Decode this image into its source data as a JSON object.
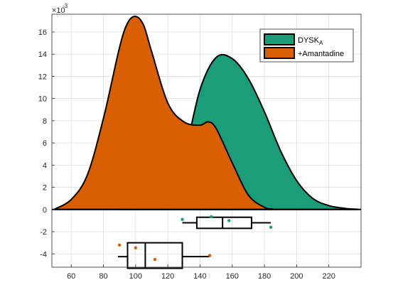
{
  "chart_data": {
    "type": "area",
    "exponent_label": "×10",
    "exponent_power": "-3",
    "xlim": [
      48,
      240
    ],
    "ylim": [
      -5.2,
      17.6
    ],
    "x_ticks": [
      60,
      80,
      100,
      120,
      140,
      160,
      180,
      200,
      220
    ],
    "y_ticks": [
      -4,
      -2,
      0,
      2,
      4,
      6,
      8,
      10,
      12,
      14,
      16
    ],
    "grid": true,
    "legend_position": "top-right",
    "series": [
      {
        "name": "DYSK",
        "name_subscript": "A",
        "color": "#1b9e77",
        "x": [
          90,
          100,
          110,
          120,
          130,
          140,
          150,
          160,
          170,
          180,
          190,
          200,
          210,
          220,
          230,
          238
        ],
        "y": [
          0.05,
          0.2,
          0.6,
          1.6,
          4.8,
          10.8,
          13.7,
          13.6,
          11.8,
          8.8,
          5.3,
          2.6,
          1.0,
          0.35,
          0.1,
          0.02
        ],
        "box": {
          "whisker_low": 129,
          "q1": 138,
          "median": 154,
          "q3": 172,
          "whisker_high": 184
        },
        "points": [
          [
            129,
            -0.9
          ],
          [
            147,
            -0.65
          ],
          [
            158,
            -1.0
          ],
          [
            184,
            -1.6
          ]
        ]
      },
      {
        "name": "+Amantadine",
        "color": "#d95f02",
        "x": [
          50,
          60,
          70,
          80,
          90,
          95,
          100,
          105,
          110,
          120,
          130,
          140,
          145,
          150,
          160,
          170,
          180,
          185
        ],
        "y": [
          0.05,
          0.9,
          3.1,
          8.2,
          14.6,
          16.8,
          17.4,
          16.6,
          14.2,
          9.6,
          7.9,
          7.6,
          7.9,
          7.3,
          4.2,
          1.3,
          0.2,
          0.05
        ],
        "box": {
          "whisker_low": 89,
          "q1": 95,
          "median": 106,
          "q3": 129,
          "whisker_high": 146
        },
        "points": [
          [
            90,
            -3.2
          ],
          [
            100,
            -3.45
          ],
          [
            112,
            -4.5
          ],
          [
            146,
            -4.15
          ]
        ]
      }
    ]
  }
}
